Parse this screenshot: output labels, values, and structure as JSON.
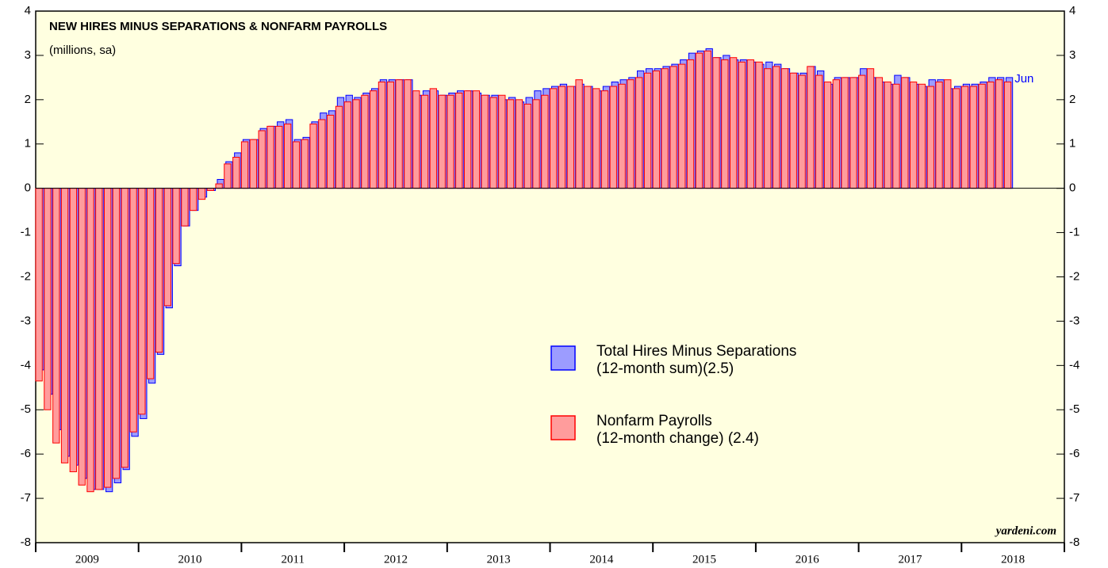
{
  "chart_data": {
    "type": "bar",
    "title": "NEW HIRES MINUS SEPARATIONS & NONFARM PAYROLLS",
    "subtitle": "(millions, sa)",
    "watermark": "yardeni.com",
    "annotation": "Jun",
    "xlim": [
      2009,
      2019
    ],
    "xticks": [
      2009,
      2010,
      2011,
      2012,
      2013,
      2014,
      2015,
      2016,
      2017,
      2018,
      2019
    ],
    "xlabels": [
      "2009",
      "2010",
      "2011",
      "2012",
      "2013",
      "2014",
      "2015",
      "2016",
      "2017",
      "2018"
    ],
    "ylim": [
      -8,
      4
    ],
    "yticks": [
      -8,
      -7,
      -6,
      -5,
      -4,
      -3,
      -2,
      -1,
      0,
      1,
      2,
      3,
      4
    ],
    "x": [
      2009.0,
      2009.083,
      2009.167,
      2009.25,
      2009.333,
      2009.417,
      2009.5,
      2009.583,
      2009.667,
      2009.75,
      2009.833,
      2009.917,
      2010.0,
      2010.083,
      2010.167,
      2010.25,
      2010.333,
      2010.417,
      2010.5,
      2010.583,
      2010.667,
      2010.75,
      2010.833,
      2010.917,
      2011.0,
      2011.083,
      2011.167,
      2011.25,
      2011.333,
      2011.417,
      2011.5,
      2011.583,
      2011.667,
      2011.75,
      2011.833,
      2011.917,
      2012.0,
      2012.083,
      2012.167,
      2012.25,
      2012.333,
      2012.417,
      2012.5,
      2012.583,
      2012.667,
      2012.75,
      2012.833,
      2012.917,
      2013.0,
      2013.083,
      2013.167,
      2013.25,
      2013.333,
      2013.417,
      2013.5,
      2013.583,
      2013.667,
      2013.75,
      2013.833,
      2013.917,
      2014.0,
      2014.083,
      2014.167,
      2014.25,
      2014.333,
      2014.417,
      2014.5,
      2014.583,
      2014.667,
      2014.75,
      2014.833,
      2014.917,
      2015.0,
      2015.083,
      2015.167,
      2015.25,
      2015.333,
      2015.417,
      2015.5,
      2015.583,
      2015.667,
      2015.75,
      2015.833,
      2015.917,
      2016.0,
      2016.083,
      2016.167,
      2016.25,
      2016.333,
      2016.417,
      2016.5,
      2016.583,
      2016.667,
      2016.75,
      2016.833,
      2016.917,
      2017.0,
      2017.083,
      2017.167,
      2017.25,
      2017.333,
      2017.417,
      2017.5,
      2017.583,
      2017.667,
      2017.75,
      2017.833,
      2017.917,
      2018.0,
      2018.083,
      2018.167,
      2018.25,
      2018.333,
      2018.417
    ],
    "series": [
      {
        "name": "Total Hires Minus Separations\n(12-month sum)(2.5)",
        "color": "#0000ff",
        "fill": "#9c9cff",
        "values": [
          -4.1,
          -4.65,
          -5.45,
          -6.05,
          -6.25,
          -6.55,
          -6.8,
          -6.8,
          -6.85,
          -6.65,
          -6.35,
          -5.6,
          -5.2,
          -4.4,
          -3.75,
          -2.7,
          -1.75,
          -0.85,
          -0.5,
          -0.2,
          -0.05,
          0.2,
          0.6,
          0.8,
          1.1,
          1.1,
          1.35,
          1.4,
          1.5,
          1.55,
          1.1,
          1.15,
          1.5,
          1.7,
          1.75,
          2.05,
          2.1,
          2.05,
          2.15,
          2.25,
          2.45,
          2.45,
          2.45,
          2.45,
          2.1,
          2.2,
          2.2,
          2.1,
          2.15,
          2.2,
          2.2,
          2.15,
          2.1,
          2.1,
          2.0,
          2.05,
          1.95,
          2.05,
          2.2,
          2.25,
          2.3,
          2.35,
          2.3,
          2.35,
          2.3,
          2.2,
          2.3,
          2.4,
          2.45,
          2.5,
          2.65,
          2.7,
          2.7,
          2.75,
          2.8,
          2.9,
          3.05,
          3.1,
          3.15,
          2.95,
          3.0,
          2.9,
          2.9,
          2.85,
          2.8,
          2.85,
          2.8,
          2.7,
          2.6,
          2.6,
          2.75,
          2.65,
          2.35,
          2.5,
          2.5,
          2.5,
          2.7,
          2.5,
          2.4,
          2.35,
          2.55,
          2.5,
          2.35,
          2.3,
          2.45,
          2.45,
          2.25,
          2.3,
          2.35,
          2.35,
          2.4,
          2.5,
          2.5,
          2.5
        ]
      },
      {
        "name": "Nonfarm Payrolls\n(12-month change) (2.4)",
        "color": "#ff0000",
        "fill": "#ff9c9c",
        "values": [
          -4.35,
          -5.0,
          -5.75,
          -6.2,
          -6.4,
          -6.7,
          -6.85,
          -6.8,
          -6.75,
          -6.55,
          -6.3,
          -5.5,
          -5.1,
          -4.3,
          -3.7,
          -2.65,
          -1.7,
          -0.85,
          -0.5,
          -0.25,
          -0.05,
          0.1,
          0.55,
          0.7,
          1.05,
          1.1,
          1.3,
          1.4,
          1.4,
          1.45,
          1.05,
          1.1,
          1.45,
          1.55,
          1.65,
          1.85,
          1.95,
          2.0,
          2.1,
          2.2,
          2.4,
          2.4,
          2.45,
          2.45,
          2.2,
          2.1,
          2.25,
          2.1,
          2.1,
          2.15,
          2.2,
          2.2,
          2.1,
          2.05,
          2.1,
          2.0,
          2.0,
          1.9,
          2.0,
          2.1,
          2.25,
          2.3,
          2.3,
          2.45,
          2.3,
          2.25,
          2.2,
          2.3,
          2.35,
          2.45,
          2.5,
          2.6,
          2.65,
          2.7,
          2.75,
          2.8,
          2.9,
          3.05,
          3.1,
          2.95,
          2.9,
          2.95,
          2.85,
          2.9,
          2.85,
          2.7,
          2.75,
          2.7,
          2.6,
          2.55,
          2.75,
          2.55,
          2.4,
          2.45,
          2.5,
          2.5,
          2.55,
          2.7,
          2.5,
          2.4,
          2.35,
          2.5,
          2.4,
          2.35,
          2.3,
          2.4,
          2.45,
          2.25,
          2.3,
          2.3,
          2.35,
          2.4,
          2.45,
          2.4
        ]
      }
    ],
    "background": "#ffffe0"
  }
}
